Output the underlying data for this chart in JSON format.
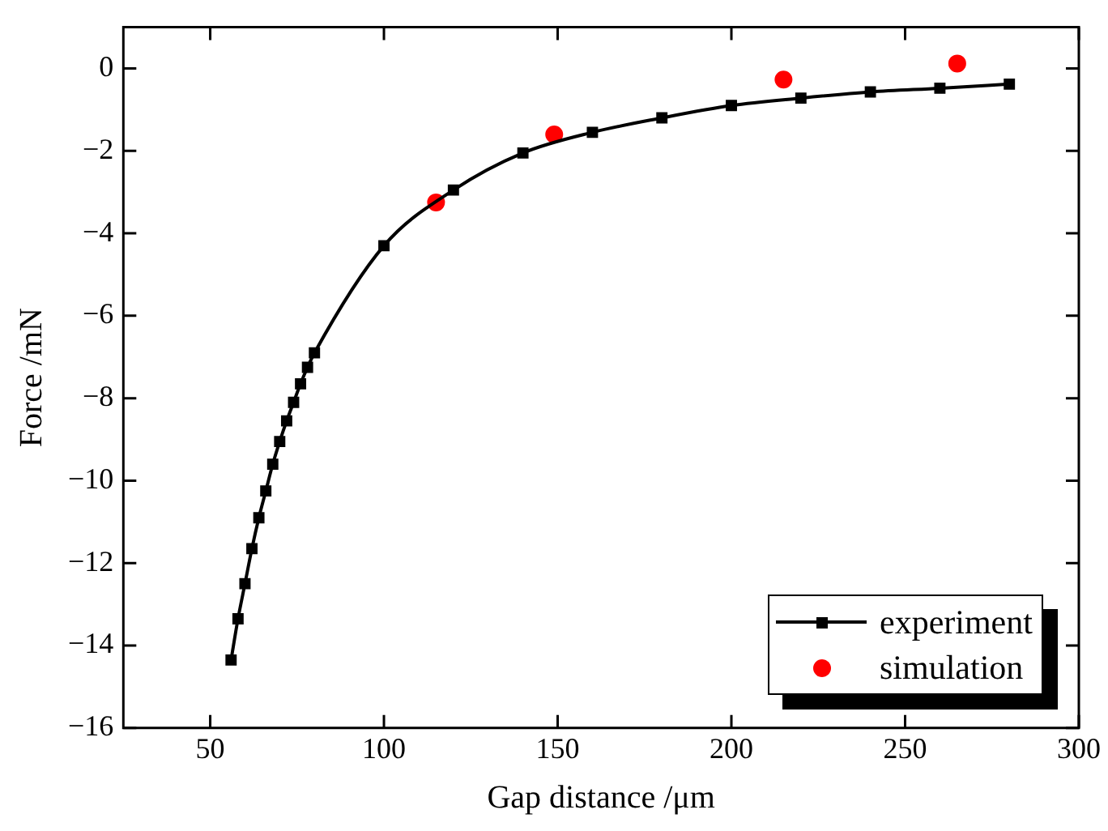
{
  "chart_data": {
    "type": "line",
    "xlabel": "Gap distance /μm",
    "ylabel": "Force /mN",
    "xlim": [
      25,
      300
    ],
    "xticks": [
      50,
      100,
      150,
      200,
      250,
      300
    ],
    "ylim": [
      -16,
      1
    ],
    "yticks": [
      -16,
      -14,
      -12,
      -10,
      -8,
      -6,
      -4,
      -2,
      0
    ],
    "grid": false,
    "legend": "bottom right",
    "series": [
      {
        "name": "experiment",
        "color": "#000000",
        "marker": "square",
        "line_style": "solid",
        "x": [
          56,
          58,
          60,
          62,
          64,
          66,
          68,
          70,
          72,
          74,
          76,
          78,
          80,
          100,
          120,
          140,
          160,
          180,
          200,
          220,
          240,
          260,
          280
        ],
        "values": [
          -14.35,
          -13.35,
          -12.5,
          -11.65,
          -10.9,
          -10.25,
          -9.6,
          -9.05,
          -8.55,
          -8.1,
          -7.65,
          -7.25,
          -6.9,
          -4.3,
          -2.95,
          -2.05,
          -1.55,
          -1.2,
          -0.9,
          -0.72,
          -0.57,
          -0.48,
          -0.38
        ]
      },
      {
        "name": "simulation",
        "type": "scatter",
        "color": "#ff0000",
        "marker": "circle",
        "x": [
          115,
          149,
          215,
          265
        ],
        "values": [
          -3.25,
          -1.6,
          -0.27,
          0.12
        ]
      }
    ]
  }
}
